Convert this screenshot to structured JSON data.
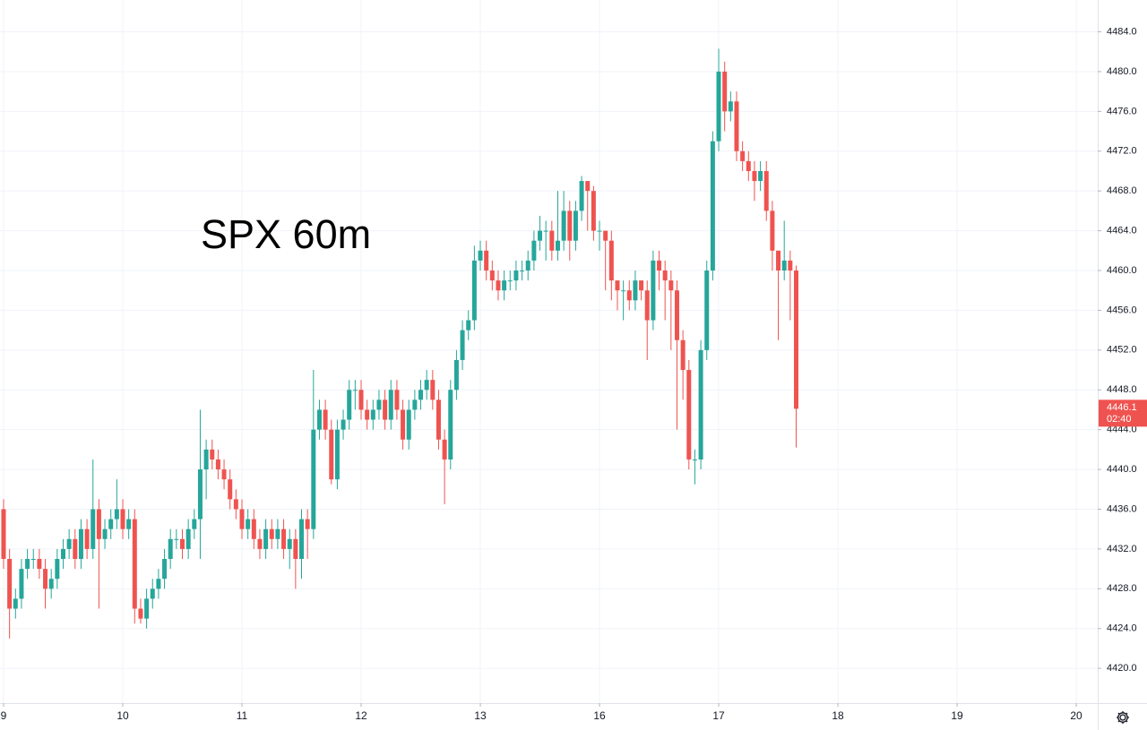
{
  "chart_data": {
    "type": "candlestick",
    "annotation": "SPX 60m",
    "colors": {
      "up": "#26a69a",
      "down": "#ef5350"
    },
    "grid": true,
    "xlim": [
      -0.6,
      183.6
    ],
    "xticks": [
      {
        "value": 0,
        "label": "9"
      },
      {
        "value": 20,
        "label": "10"
      },
      {
        "value": 40,
        "label": "11"
      },
      {
        "value": 60,
        "label": "12"
      },
      {
        "value": 80,
        "label": "13"
      },
      {
        "value": 100,
        "label": "16"
      },
      {
        "value": 120,
        "label": "17"
      },
      {
        "value": 140,
        "label": "18"
      },
      {
        "value": 160,
        "label": "19"
      },
      {
        "value": 180,
        "label": "20"
      }
    ],
    "ylim": [
      4416.5,
      4487.2
    ],
    "yticks": [
      {
        "value": 4420,
        "label": "4420.0"
      },
      {
        "value": 4424,
        "label": "4424.0"
      },
      {
        "value": 4428,
        "label": "4428.0"
      },
      {
        "value": 4432,
        "label": "4432.0"
      },
      {
        "value": 4436,
        "label": "4436.0"
      },
      {
        "value": 4440,
        "label": "4440.0"
      },
      {
        "value": 4444,
        "label": "4444.0"
      },
      {
        "value": 4448,
        "label": "4448.0"
      },
      {
        "value": 4452,
        "label": "4452.0"
      },
      {
        "value": 4456,
        "label": "4456.0"
      },
      {
        "value": 4460,
        "label": "4460.0"
      },
      {
        "value": 4464,
        "label": "4464.0"
      },
      {
        "value": 4468,
        "label": "4468.0"
      },
      {
        "value": 4472,
        "label": "4472.0"
      },
      {
        "value": 4476,
        "label": "4476.0"
      },
      {
        "value": 4480,
        "label": "4480.0"
      },
      {
        "value": 4484,
        "label": "4484.0"
      }
    ],
    "countdown": "02:40",
    "ohlc": {
      "open": [
        4436,
        4431,
        4426,
        4427,
        4430,
        4431,
        4431,
        4430,
        4428,
        4429,
        4431,
        4432,
        4433,
        4431,
        4434,
        4432,
        4436,
        4433,
        4434,
        4435,
        4436,
        4434,
        4435,
        4426,
        4425,
        4427,
        4428,
        4429,
        4431,
        4433,
        4433,
        4432,
        4434,
        4435,
        4440,
        4442,
        4441,
        4440,
        4439,
        4437,
        4436,
        4434,
        4435,
        4433,
        4432,
        4434,
        4433,
        4434,
        4432,
        4433,
        4431,
        4435,
        4434,
        4444,
        4446,
        4444,
        4439,
        4444,
        4445,
        4448,
        4448,
        4446,
        4445,
        4446,
        4447,
        4445,
        4448,
        4446,
        4443,
        4446,
        4447,
        4448,
        4449,
        4447,
        4443,
        4441,
        4448,
        4451,
        4454,
        4455,
        4461,
        4462,
        4460,
        4459,
        4458,
        4459,
        4459,
        4460,
        4460,
        4461,
        4463,
        4464,
        4464,
        4462,
        4463,
        4466,
        4463,
        4466,
        4469,
        4468,
        4464,
        4464,
        4463,
        4459,
        4458,
        4458,
        4457,
        4459,
        4458,
        4455,
        4461,
        4460,
        4459,
        4458,
        4453,
        4450,
        4441,
        4441,
        4452,
        4460,
        4473,
        4480,
        4476,
        4477,
        4472,
        4471,
        4470,
        4469,
        4470,
        4466,
        4462,
        4460,
        4461,
        4460
      ],
      "high": [
        4437,
        4432,
        4428,
        4431,
        4432,
        4432,
        4432,
        4431,
        4430,
        4432,
        4433,
        4434,
        4434,
        4435,
        4435,
        4441,
        4437,
        4435,
        4436,
        4439,
        4437,
        4436,
        4436,
        4427,
        4428,
        4429,
        4430,
        4432,
        4434,
        4434,
        4434,
        4435,
        4436,
        4446,
        4443,
        4443,
        4442,
        4441,
        4440,
        4438,
        4437,
        4436,
        4436,
        4434,
        4435,
        4435,
        4435,
        4435,
        4434,
        4434,
        4436,
        4436,
        4450,
        4447,
        4447,
        4445,
        4445,
        4446,
        4449,
        4449,
        4449,
        4447,
        4447,
        4448,
        4448,
        4449,
        4449,
        4447,
        4447,
        4448,
        4449,
        4450,
        4450,
        4448,
        4444,
        4449,
        4452,
        4455,
        4456,
        4462.5,
        4463,
        4463,
        4461,
        4460,
        4460,
        4460,
        4461,
        4461,
        4462,
        4464,
        4465.5,
        4465,
        4465,
        4468,
        4468,
        4467,
        4467,
        4469.5,
        4469,
        4468.5,
        4465,
        4464,
        4464,
        4459,
        4459,
        4459,
        4460,
        4459,
        4459,
        4462,
        4462,
        4461,
        4460,
        4459,
        4454,
        4451,
        4442,
        4453,
        4461,
        4474,
        4482.3,
        4481,
        4478,
        4478,
        4473,
        4472,
        4471,
        4471,
        4471,
        4467,
        4462,
        4465,
        4462,
        4460.5
      ],
      "low": [
        4430,
        4423,
        4425,
        4426,
        4429,
        4430,
        4429,
        4426,
        4427,
        4428,
        4430,
        4431,
        4430,
        4430,
        4431,
        4431,
        4426,
        4432,
        4433,
        4434,
        4433,
        4433,
        4424.5,
        4424.5,
        4424,
        4426,
        4427,
        4428,
        4430,
        4432,
        4431,
        4431,
        4433,
        4431,
        4437,
        4440,
        4439,
        4438,
        4436,
        4435,
        4433,
        4433,
        4432,
        4431,
        4431,
        4432,
        4432,
        4431,
        4430,
        4428,
        4429,
        4431,
        4433,
        4443,
        4443,
        4438.5,
        4438,
        4443,
        4444,
        4446,
        4445,
        4444,
        4444,
        4445,
        4444,
        4444,
        4445,
        4442,
        4442,
        4445,
        4446,
        4447,
        4446,
        4442,
        4436.5,
        4440,
        4447,
        4450,
        4453,
        4454,
        4460,
        4459,
        4458,
        4457,
        4457,
        4458,
        4458,
        4459,
        4459,
        4460,
        4462,
        4461,
        4461,
        4461,
        4462,
        4461,
        4462,
        4465,
        4464,
        4463,
        4462,
        4458,
        4457,
        4456,
        4455,
        4456,
        4456,
        4457,
        4451,
        4454,
        4458,
        4455,
        4452,
        4444,
        4447,
        4440,
        4438.5,
        4440,
        4451,
        4459,
        4472,
        4474,
        4475,
        4471,
        4470,
        4469,
        4467,
        4468,
        4465,
        4460,
        4453,
        4459,
        4455,
        4442.2
      ],
      "close": [
        4431,
        4426,
        4427,
        4430,
        4431,
        4431,
        4430,
        4428,
        4429,
        4431,
        4432,
        4433,
        4431,
        4434,
        4432,
        4436,
        4433,
        4434,
        4435,
        4436,
        4434,
        4435,
        4426,
        4425,
        4427,
        4428,
        4429,
        4431,
        4433,
        4433,
        4432,
        4434,
        4435,
        4440,
        4442,
        4441,
        4440,
        4439,
        4437,
        4436,
        4434,
        4435,
        4433,
        4432,
        4434,
        4433,
        4434,
        4432,
        4433,
        4431,
        4435,
        4434,
        4444,
        4446,
        4444,
        4439,
        4444,
        4445,
        4448,
        4448,
        4446,
        4445,
        4446,
        4447,
        4445,
        4448,
        4446,
        4443,
        4446,
        4447,
        4448,
        4449,
        4447,
        4443,
        4441,
        4448,
        4451,
        4454,
        4455,
        4461,
        4462,
        4460,
        4459,
        4458,
        4459,
        4459,
        4460,
        4460,
        4461,
        4463,
        4464,
        4464,
        4462,
        4463,
        4466,
        4463,
        4466,
        4469,
        4468,
        4464,
        4464,
        4463,
        4459,
        4458,
        4458,
        4457,
        4459,
        4458,
        4455,
        4461,
        4460,
        4459,
        4458,
        4453,
        4450,
        4441,
        4441,
        4452,
        4460,
        4473,
        4480,
        4476,
        4477,
        4472,
        4471,
        4470,
        4469,
        4470,
        4466,
        4462,
        4460,
        4461,
        4460,
        4446.1
      ]
    }
  }
}
